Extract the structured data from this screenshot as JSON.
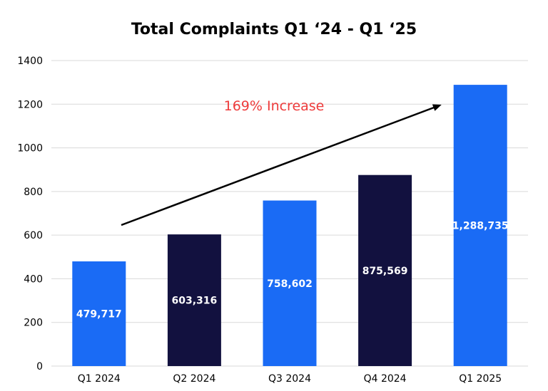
{
  "chart_data": {
    "type": "bar",
    "title": "Total Complaints Q1 ‘24 - Q1 ‘25",
    "categories": [
      "Q1 2024",
      "Q2 2024",
      "Q3 2024",
      "Q4 2024",
      "Q1 2025"
    ],
    "values": [
      479.717,
      603.316,
      758.602,
      875.569,
      1288.735
    ],
    "data_labels": [
      "479,717",
      "603,316",
      "758,602",
      "875,569",
      "1,288,735"
    ],
    "bar_colors": [
      "#1a6bf5",
      "#12113f",
      "#1a6bf5",
      "#12113f",
      "#1a6bf5"
    ],
    "ylim": [
      0,
      1400
    ],
    "yticks": [
      0,
      200,
      400,
      600,
      800,
      1000,
      1200,
      1400
    ],
    "xlabel": "",
    "ylabel": "",
    "grid": true,
    "annotation": {
      "text": "169% Increase",
      "color": "#ee3b3b",
      "arrow": "rising arrow from Q1 2024 toward Q1 2025"
    }
  }
}
